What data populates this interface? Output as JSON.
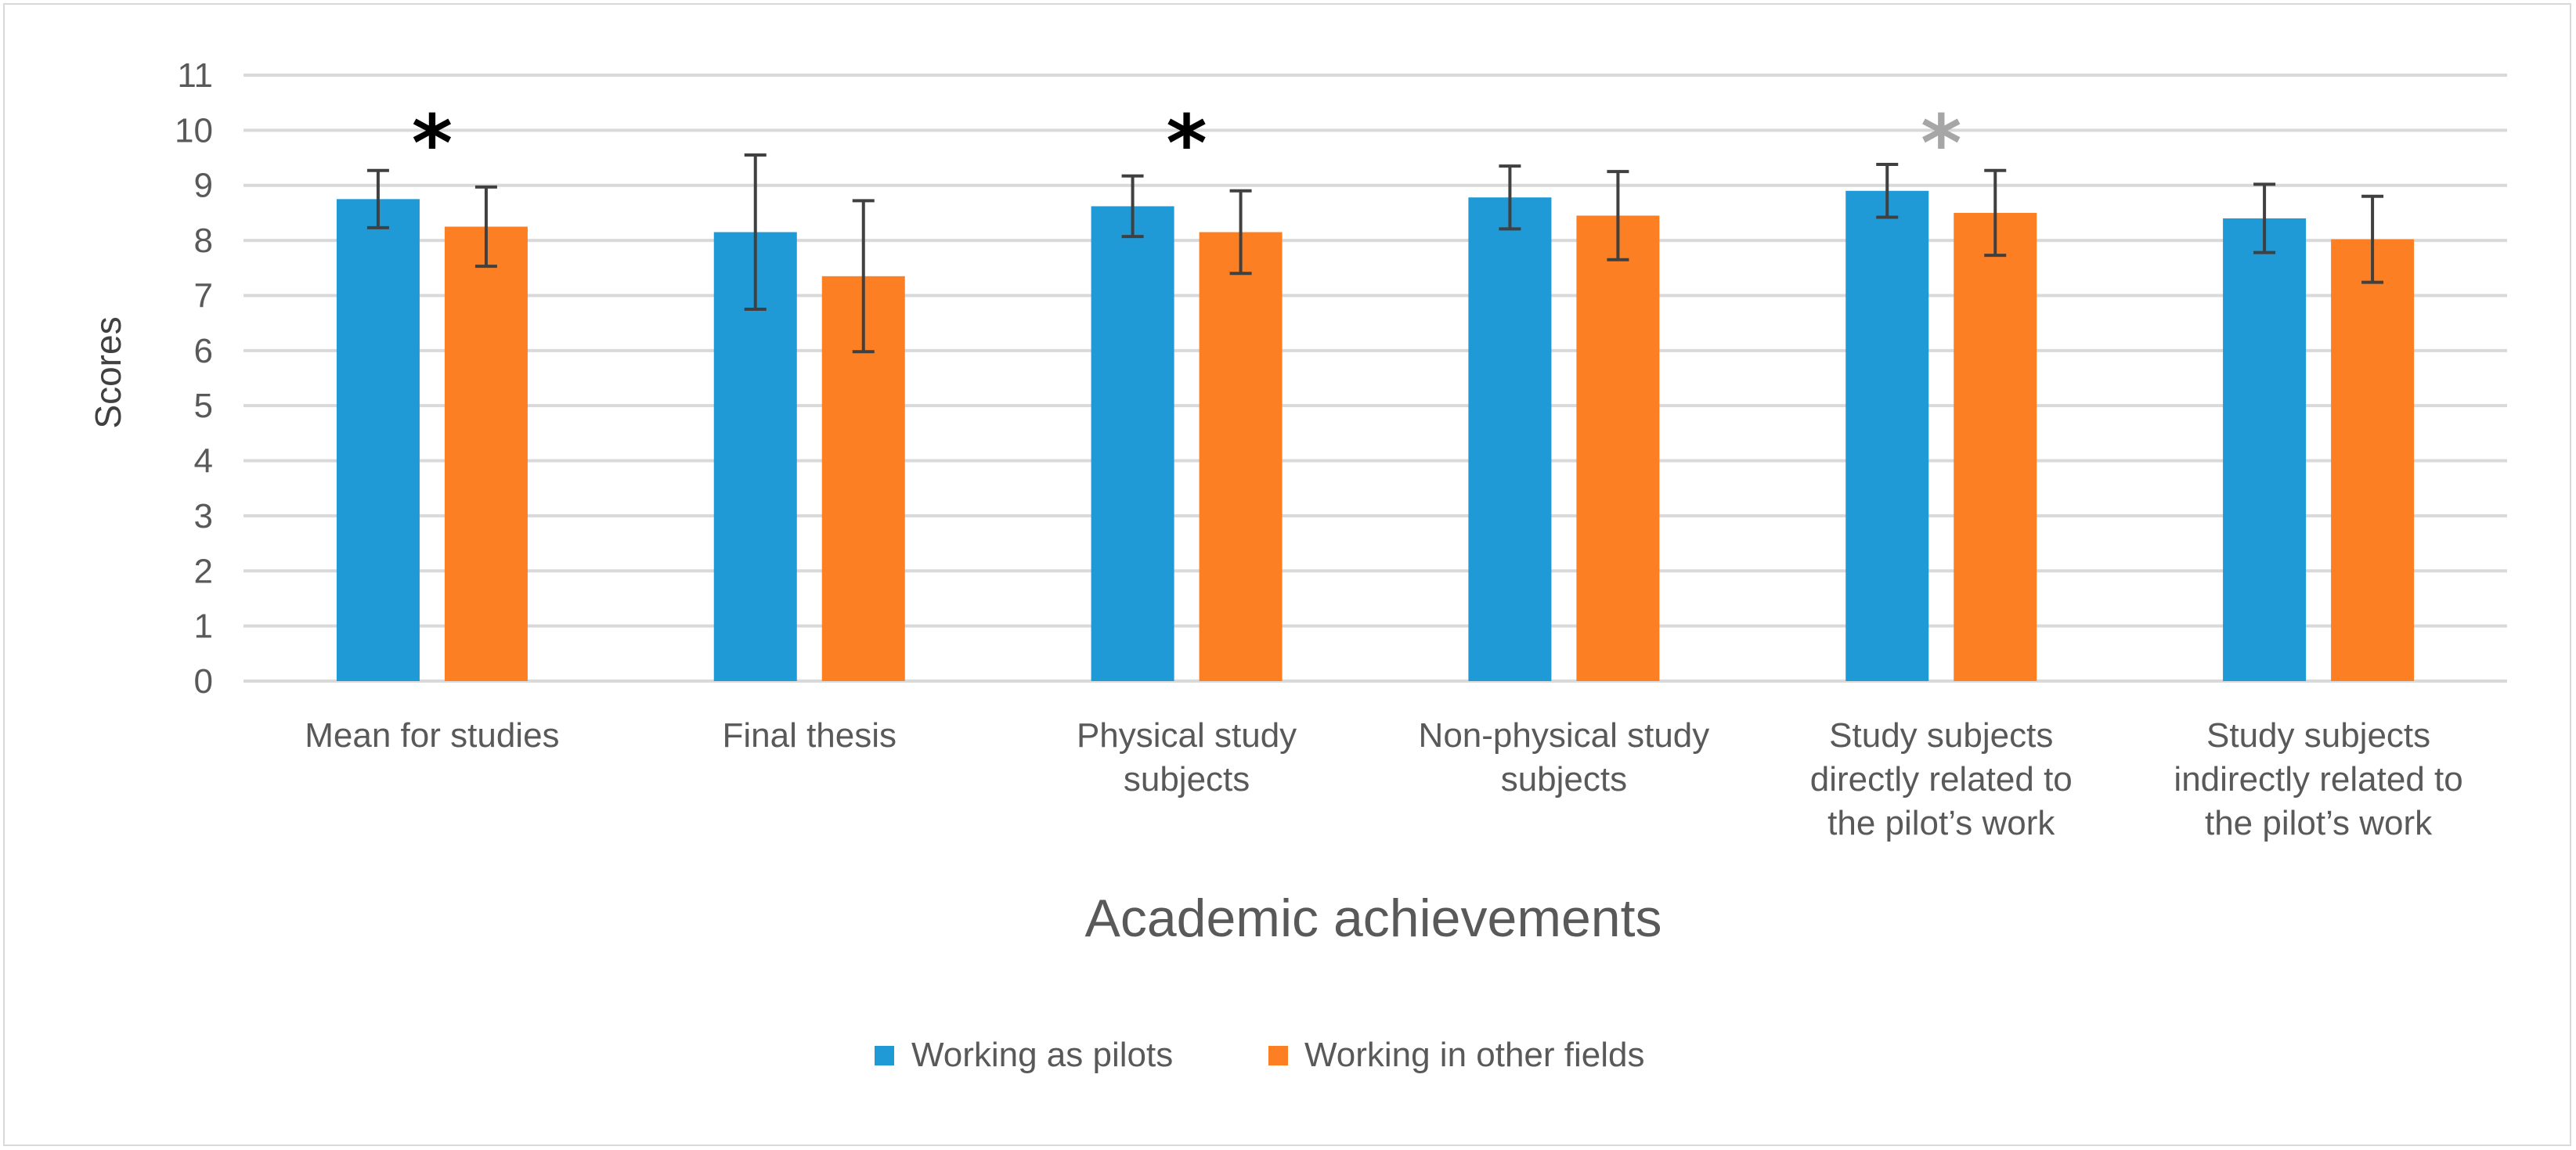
{
  "chart_data": {
    "type": "bar",
    "title": "",
    "xlabel": "Academic achievements",
    "ylabel": "Scores",
    "ylim": [
      0,
      11
    ],
    "yticks": [
      "0",
      "1",
      "2",
      "3",
      "4",
      "5",
      "6",
      "7",
      "8",
      "9",
      "10",
      "11"
    ],
    "grid": true,
    "legend_position": "bottom",
    "categories": [
      [
        "Mean for studies"
      ],
      [
        "Final thesis"
      ],
      [
        "Physical study",
        "subjects"
      ],
      [
        "Non-physical study",
        "subjects"
      ],
      [
        "Study subjects",
        "directly related to",
        "the pilot’s work"
      ],
      [
        "Study subjects",
        "indirectly related to",
        "the pilot’s work"
      ]
    ],
    "series": [
      {
        "name": "Working as pilots",
        "color": "#1f9ad6",
        "values": [
          8.75,
          8.15,
          8.62,
          8.78,
          8.9,
          8.4
        ],
        "errors": [
          0.52,
          1.4,
          0.55,
          0.57,
          0.48,
          0.62
        ]
      },
      {
        "name": "Working in other fields",
        "color": "#fd7f23",
        "values": [
          8.25,
          7.35,
          8.15,
          8.45,
          8.5,
          8.02
        ],
        "errors": [
          0.72,
          1.37,
          0.75,
          0.8,
          0.77,
          0.78
        ]
      }
    ],
    "annotations": [
      {
        "text": "*",
        "category": 0,
        "color": "#000000"
      },
      {
        "text": "*",
        "category": 2,
        "color": "#000000"
      },
      {
        "text": "*",
        "category": 4,
        "color": "#a6a6a6"
      }
    ]
  }
}
